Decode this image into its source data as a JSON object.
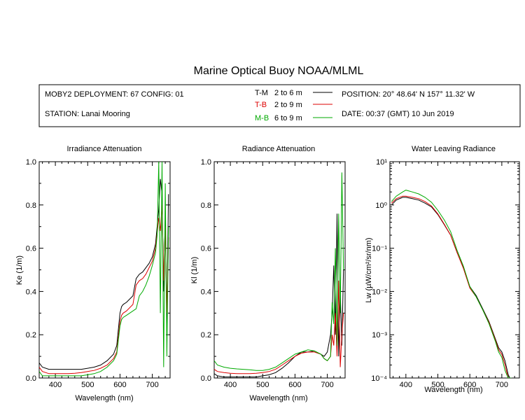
{
  "title": "Marine Optical Buoy NOAA/MLML",
  "info": {
    "deployment": "MOBY2 DEPLOYMENT: 67 CONFIG: 01",
    "station": "STATION: Lanai Mooring",
    "position": "POSITION: 20° 48.64' N   157° 11.32' W",
    "date": "DATE: 00:37 (GMT) 10 Jun 2019"
  },
  "legend": [
    {
      "tag": "T-M",
      "range": "2 to 6  m",
      "tag_color": "#000000",
      "color": "#000000"
    },
    {
      "tag": "T-B",
      "range": "2 to 9  m",
      "tag_color": "#dd0000",
      "color": "#dd0000"
    },
    {
      "tag": "M-B",
      "range": "6 to 9  m",
      "tag_color": "#00aa00",
      "color": "#00aa00"
    }
  ],
  "chart_data": [
    {
      "type": "line",
      "title": "Irradiance Attenuation",
      "xlabel": "Wavelength (nm)",
      "ylabel": "Ke  (1/m)",
      "xlim": [
        350,
        755
      ],
      "ylim": [
        0,
        1
      ],
      "xticks": [
        "400",
        "500",
        "600",
        "700"
      ],
      "yticks": [
        "0.0",
        "0.2",
        "0.4",
        "0.6",
        "0.8",
        "1.0"
      ],
      "x": [
        350,
        360,
        380,
        400,
        420,
        440,
        460,
        480,
        500,
        520,
        540,
        560,
        580,
        590,
        600,
        605,
        610,
        620,
        640,
        650,
        660,
        670,
        680,
        690,
        700,
        710,
        715,
        720,
        725,
        730,
        735,
        740,
        745,
        750
      ],
      "series": [
        {
          "name": "T-M",
          "color": "#000000",
          "values": [
            0.07,
            0.05,
            0.04,
            0.04,
            0.04,
            0.04,
            0.04,
            0.04,
            0.045,
            0.05,
            0.06,
            0.08,
            0.11,
            0.15,
            0.3,
            0.33,
            0.34,
            0.35,
            0.38,
            0.46,
            0.48,
            0.49,
            0.51,
            0.53,
            0.56,
            0.62,
            0.7,
            0.78,
            0.92,
            0.85,
            0.4,
            0.75,
            0.25,
            0.85
          ]
        },
        {
          "name": "T-B",
          "color": "#dd0000",
          "values": [
            0.05,
            0.03,
            0.02,
            0.02,
            0.02,
            0.02,
            0.022,
            0.025,
            0.03,
            0.035,
            0.045,
            0.06,
            0.09,
            0.12,
            0.26,
            0.29,
            0.3,
            0.31,
            0.34,
            0.43,
            0.45,
            0.46,
            0.48,
            0.51,
            0.54,
            0.6,
            0.67,
            0.74,
            0.68,
            0.8,
            0.45,
            0.7,
            0.3,
            0.65
          ]
        },
        {
          "name": "M-B",
          "color": "#00aa00",
          "values": [
            0.03,
            0.01,
            0.01,
            0.01,
            0.01,
            0.01,
            0.01,
            0.01,
            0.015,
            0.02,
            0.03,
            0.05,
            0.08,
            0.11,
            0.24,
            0.27,
            0.28,
            0.29,
            0.31,
            0.32,
            0.38,
            0.4,
            0.43,
            0.47,
            0.52,
            0.58,
            0.66,
            1.0,
            0.3,
            1.0,
            0.05,
            0.9,
            0.1,
            0.7
          ]
        }
      ]
    },
    {
      "type": "line",
      "title": "Radiance Attenuation",
      "xlabel": "Wavelength (nm)",
      "ylabel": "Kl  (1/m)",
      "xlim": [
        350,
        755
      ],
      "ylim": [
        0,
        1
      ],
      "xticks": [
        "400",
        "500",
        "600",
        "700"
      ],
      "yticks": [
        "0.0",
        "0.2",
        "0.4",
        "0.6",
        "0.8",
        "1.0"
      ],
      "x": [
        350,
        360,
        380,
        400,
        420,
        440,
        460,
        480,
        500,
        520,
        540,
        560,
        580,
        600,
        620,
        640,
        660,
        680,
        690,
        700,
        710,
        715,
        720,
        725,
        730,
        735,
        740,
        745,
        750
      ],
      "series": [
        {
          "name": "T-M",
          "color": "#000000",
          "values": [
            0.02,
            0.01,
            0.005,
            0.005,
            0.005,
            0.005,
            0.005,
            0.005,
            0.01,
            0.015,
            0.025,
            0.045,
            0.07,
            0.1,
            0.12,
            0.12,
            0.125,
            0.11,
            0.1,
            0.12,
            0.2,
            0.3,
            0.52,
            0.2,
            0.76,
            0.1,
            0.4,
            0.15,
            0.5
          ]
        },
        {
          "name": "T-B",
          "color": "#dd0000",
          "values": [
            0.04,
            0.03,
            0.025,
            0.022,
            0.02,
            0.02,
            0.02,
            0.022,
            0.025,
            0.03,
            0.04,
            0.06,
            0.08,
            0.1,
            0.115,
            0.12,
            0.12,
            0.11,
            0.09,
            0.08,
            0.1,
            0.2,
            0.15,
            0.3,
            0.1,
            0.45,
            0.05,
            0.2,
            0.3
          ]
        },
        {
          "name": "M-B",
          "color": "#00aa00",
          "values": [
            0.08,
            0.06,
            0.05,
            0.045,
            0.042,
            0.04,
            0.038,
            0.035,
            0.035,
            0.04,
            0.05,
            0.07,
            0.09,
            0.11,
            0.12,
            0.13,
            0.125,
            0.11,
            0.09,
            0.08,
            0.1,
            0.35,
            0.25,
            0.6,
            0.15,
            0.76,
            0.3,
            0.95,
            0.5
          ]
        }
      ]
    },
    {
      "type": "line",
      "title": "Water Leaving Radiance",
      "xlabel": "Wavelength (nm)",
      "ylabel": "Lw  (µW/cm²/sr/nm)",
      "xlim": [
        350,
        755
      ],
      "ylim": [
        0.0001,
        10
      ],
      "yscale": "log",
      "xticks": [
        "400",
        "500",
        "600",
        "700"
      ],
      "yticks": [
        "10⁻⁴",
        "10⁻³",
        "10⁻²",
        "10⁻¹",
        "10⁰",
        "10¹"
      ],
      "x": [
        355,
        370,
        390,
        400,
        420,
        440,
        460,
        480,
        500,
        520,
        540,
        560,
        580,
        600,
        620,
        640,
        660,
        680,
        690,
        700,
        710,
        720,
        725,
        730
      ],
      "series": [
        {
          "name": "T-M",
          "color": "#000000",
          "values": [
            1.0,
            1.3,
            1.5,
            1.5,
            1.4,
            1.3,
            1.1,
            0.9,
            0.6,
            0.35,
            0.2,
            0.08,
            0.035,
            0.013,
            0.008,
            0.004,
            0.002,
            0.0008,
            0.0005,
            0.0004,
            0.00025,
            0.00012,
            0.0001,
            0.0001
          ]
        },
        {
          "name": "T-B",
          "color": "#dd0000",
          "values": [
            1.1,
            1.4,
            1.6,
            1.6,
            1.5,
            1.4,
            1.2,
            0.95,
            0.62,
            0.36,
            0.2,
            0.08,
            0.034,
            0.012,
            0.0075,
            0.0038,
            0.0019,
            0.00075,
            0.00045,
            0.00035,
            0.0002,
            0.0001,
            0.0001,
            0.0001
          ]
        },
        {
          "name": "M-B",
          "color": "#00aa00",
          "values": [
            1.2,
            1.6,
            2.0,
            2.2,
            2.0,
            1.8,
            1.5,
            1.15,
            0.75,
            0.45,
            0.24,
            0.09,
            0.038,
            0.013,
            0.0075,
            0.0038,
            0.0018,
            0.0007,
            0.0004,
            0.0003,
            0.00015,
            0.0001,
            0.0001,
            0.0001
          ]
        }
      ]
    }
  ]
}
